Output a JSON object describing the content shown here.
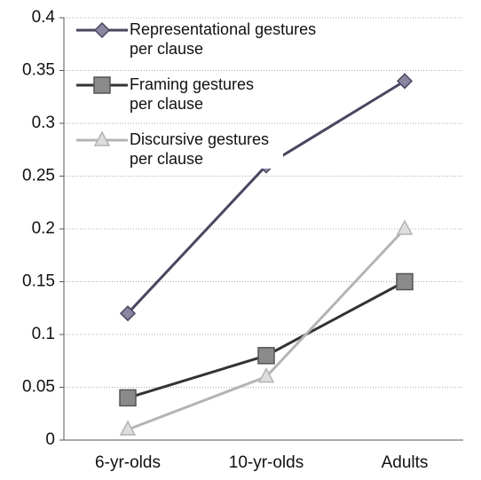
{
  "chart_data": {
    "type": "line",
    "categories": [
      "6-yr-olds",
      "10-yr-olds",
      "Adults"
    ],
    "series": [
      {
        "name": "Representational gestures per clause",
        "color": "#4b4660",
        "marker": "diamond",
        "values": [
          0.12,
          0.26,
          0.34
        ]
      },
      {
        "name": "Framing gestures per clause",
        "color": "#333333",
        "marker": "square",
        "values": [
          0.04,
          0.08,
          0.15
        ]
      },
      {
        "name": "Discursive gestures per clause",
        "color": "#b4b4b4",
        "marker": "triangle",
        "values": [
          0.01,
          0.06,
          0.2
        ]
      }
    ],
    "ylim": [
      0,
      0.4
    ],
    "yticks": [
      0,
      0.05,
      0.1,
      0.15,
      0.2,
      0.25,
      0.3,
      0.35,
      0.4
    ],
    "grid": true,
    "legend": "upper left"
  }
}
